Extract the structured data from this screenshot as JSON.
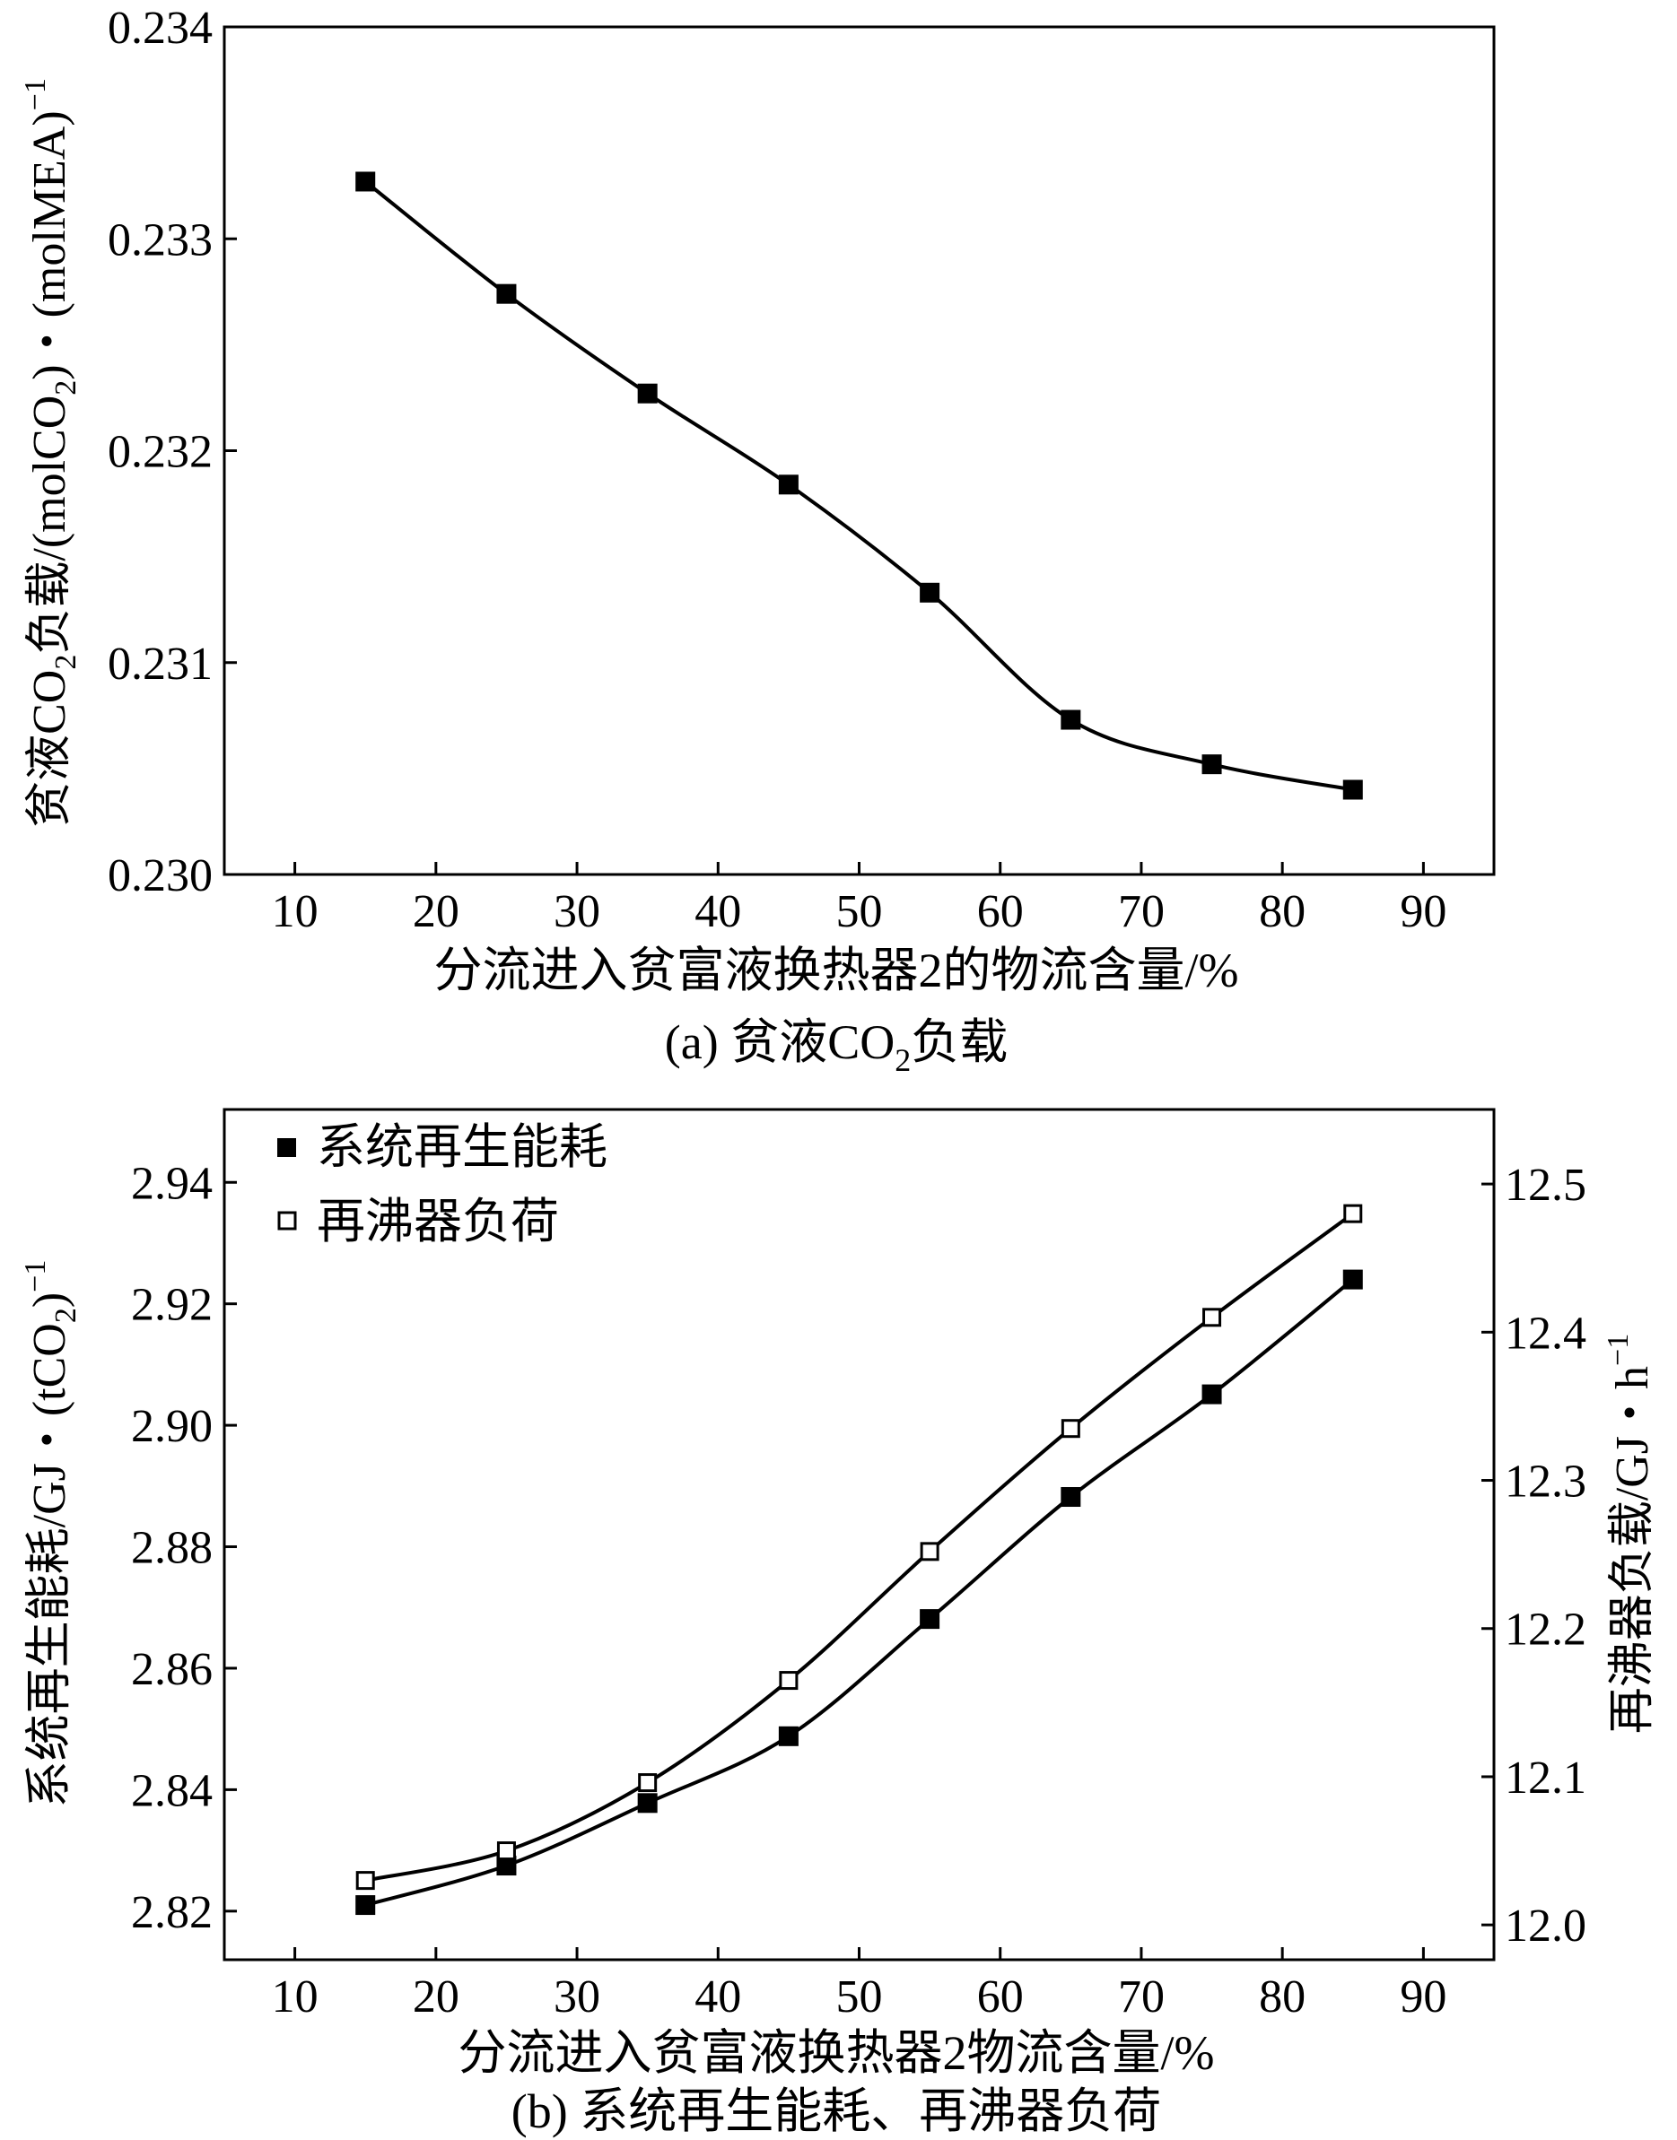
{
  "chart_data": [
    {
      "type": "line",
      "caption": "(a) 贫液CO",
      "caption_sub": "2",
      "caption_end": "负载",
      "xlabel": "分流进入贫富液换热器2的物流含量/%",
      "ylabel": "贫液CO",
      "ylabel_sub": "2",
      "ylabel_mid": "负载/(molCO",
      "ylabel_sub2": "2",
      "ylabel_end": ")・(molMEA)",
      "ylabel_sup": "−1",
      "xlim": [
        5,
        95
      ],
      "ylim": [
        0.23,
        0.234
      ],
      "xticks": [
        "10",
        "20",
        "30",
        "40",
        "50",
        "60",
        "70",
        "80",
        "90"
      ],
      "yticks": [
        "0.230",
        "0.231",
        "0.232",
        "0.233",
        "0.234"
      ],
      "grid": false,
      "series": [
        {
          "marker": "filled-square",
          "x": [
            15,
            25,
            35,
            45,
            55,
            65,
            75,
            85
          ],
          "y": [
            0.23327,
            0.23274,
            0.23227,
            0.23184,
            0.23133,
            0.23073,
            0.23052,
            0.2304
          ]
        }
      ]
    },
    {
      "type": "line",
      "caption": "(b) 系统再生能耗、再沸器负荷",
      "xlabel": "分流进入贫富液换热器2物流含量/%",
      "ylabel": "系统再生能耗/GJ・(tCO",
      "ylabel_sub": "2",
      "ylabel_end": ")",
      "ylabel_sup": "−1",
      "y2label": "再沸器负载/GJ・h",
      "y2label_sup": "−1",
      "xlim": [
        5,
        95
      ],
      "ylim": [
        2.812,
        2.952
      ],
      "y2lim": [
        11.9765,
        12.5503
      ],
      "xticks": [
        "10",
        "20",
        "30",
        "40",
        "50",
        "60",
        "70",
        "80",
        "90"
      ],
      "yticks": [
        "2.82",
        "2.84",
        "2.86",
        "2.88",
        "2.90",
        "2.92",
        "2.94"
      ],
      "y2ticks": [
        "12.0",
        "12.1",
        "12.2",
        "12.3",
        "12.4",
        "12.5"
      ],
      "grid": false,
      "legend_position": "top-left",
      "series": [
        {
          "name": "系统再生能耗",
          "marker": "filled-square",
          "axis": "left",
          "x": [
            15,
            25,
            35,
            45,
            55,
            65,
            75,
            85
          ],
          "y": [
            2.821,
            2.8275,
            2.8378,
            2.8488,
            2.8681,
            2.8882,
            2.9051,
            2.924
          ]
        },
        {
          "name": "再沸器负荷",
          "marker": "open-square",
          "axis": "right",
          "x": [
            15,
            25,
            35,
            45,
            55,
            65,
            75,
            85
          ],
          "y": [
            12.03,
            12.05,
            12.096,
            12.165,
            12.252,
            12.335,
            12.41,
            12.48
          ]
        }
      ]
    }
  ]
}
